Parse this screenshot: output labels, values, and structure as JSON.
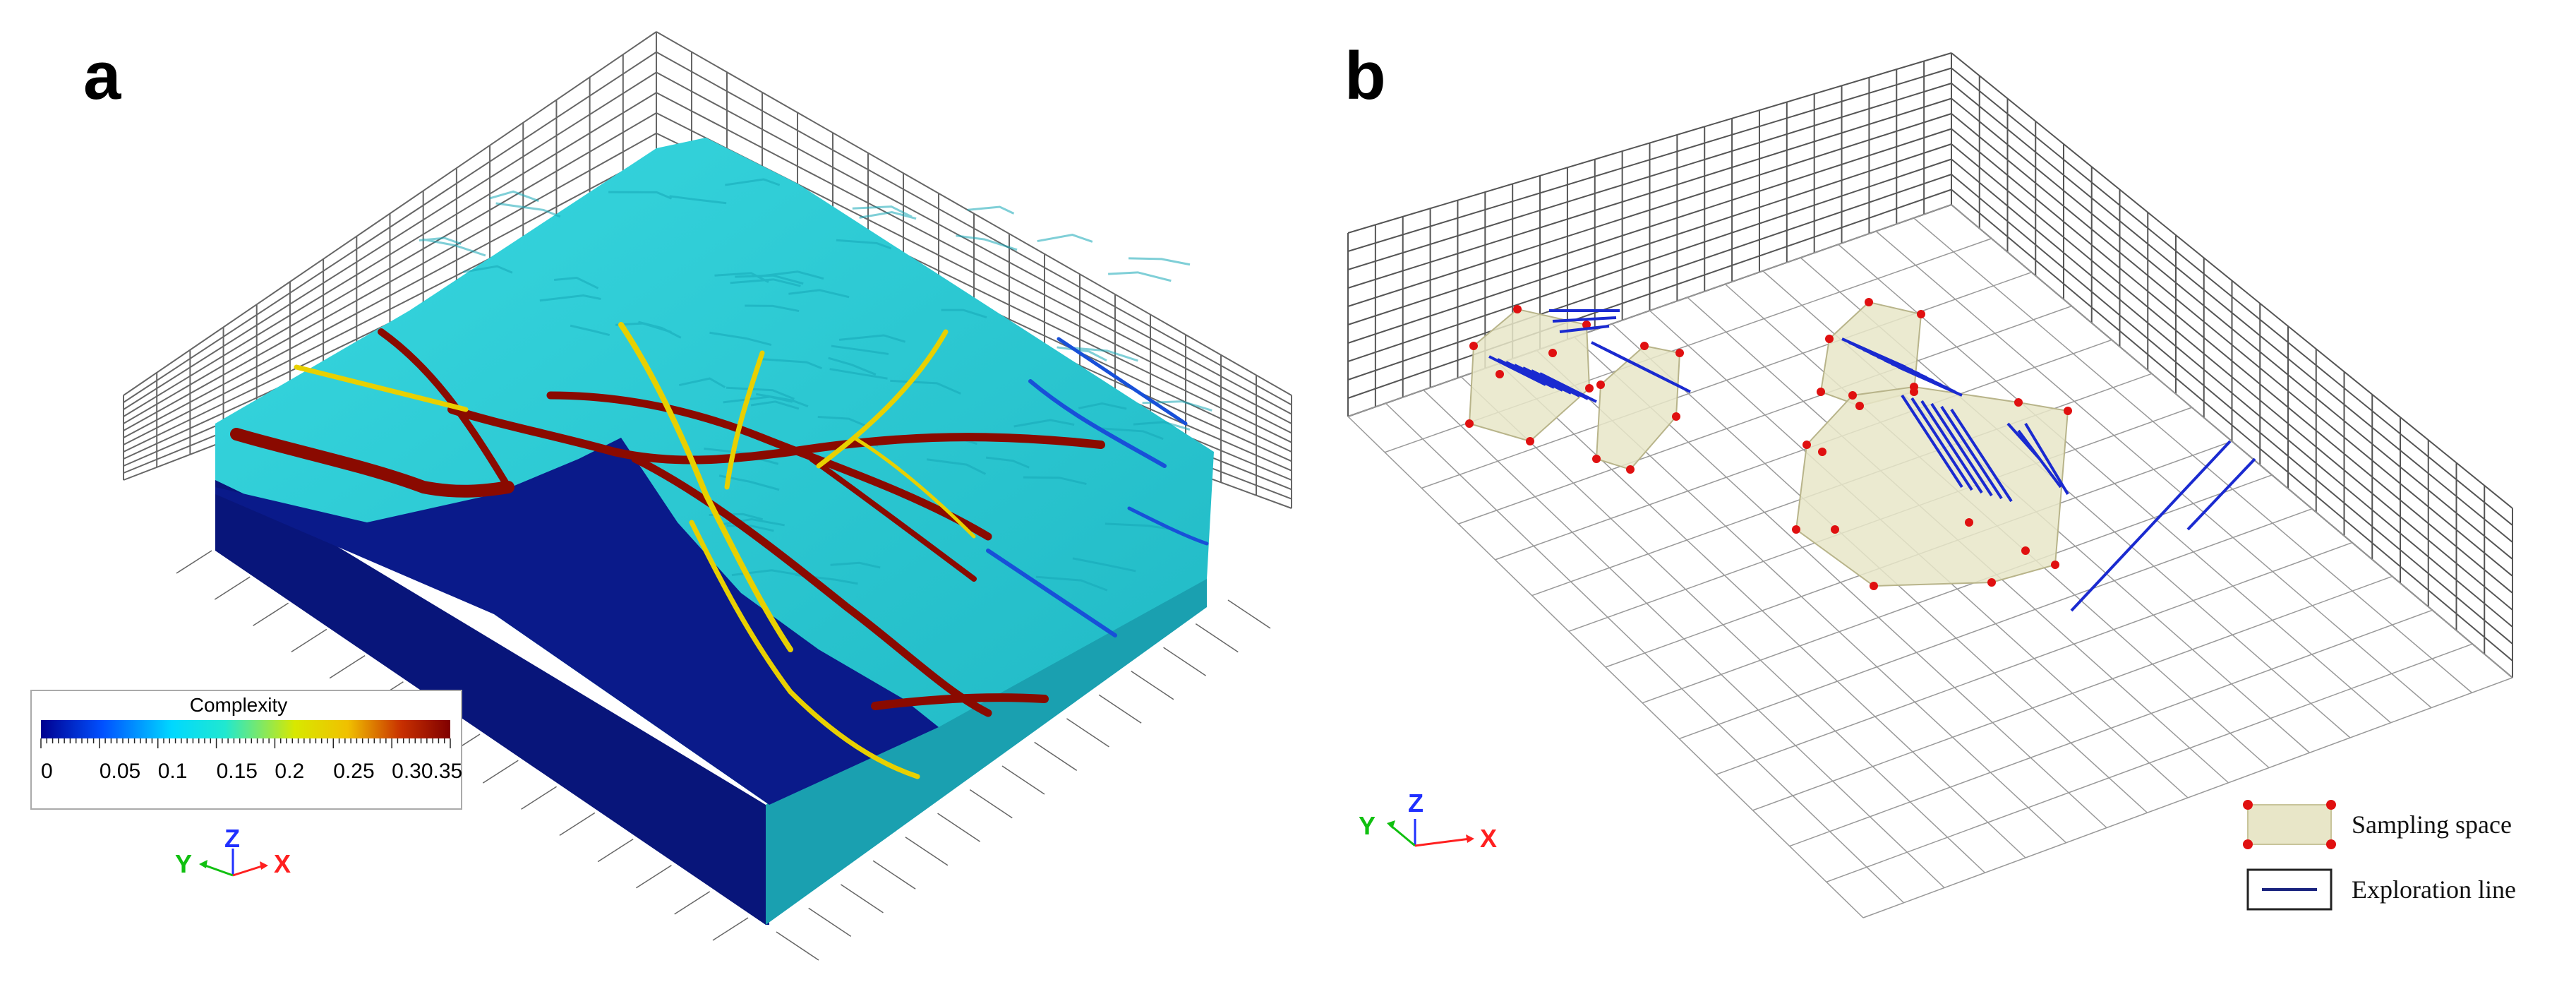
{
  "panels": {
    "a": {
      "letter": "a"
    },
    "b": {
      "letter": "b"
    }
  },
  "colorbar": {
    "title": "Complexity",
    "ticks": [
      "0",
      "0.05",
      "0.1",
      "0.15",
      "0.2",
      "0.25",
      "0.30.35"
    ],
    "range": [
      0,
      0.35
    ],
    "colormap": [
      "#00008f",
      "#0050ff",
      "#00d8ff",
      "#20e8d0",
      "#d8e800",
      "#f0c000",
      "#c83000",
      "#800000"
    ]
  },
  "axes_triad": {
    "x": "X",
    "y": "Y",
    "z": "Z",
    "colors": {
      "x": "#ff2020",
      "y": "#10c010",
      "z": "#2030ff"
    }
  },
  "legend": {
    "items": [
      {
        "label": "Sampling space",
        "fill": "#e8e6c8",
        "marker": "#e01010"
      },
      {
        "label": "Exploration line",
        "color": "#1a237e"
      }
    ]
  },
  "colors": {
    "surface": "#2fd0d8",
    "surface_dark": "#18a8b4",
    "base": "#0a1a8a",
    "vein_high": "#8a0a00",
    "vein_mid": "#e8d000",
    "vein_low": "#1850d8",
    "grid": "#555555",
    "sampling_fill": "#e8e6c8",
    "sampling_vertex": "#e01010",
    "exploration_line": "#1a2ad0"
  }
}
